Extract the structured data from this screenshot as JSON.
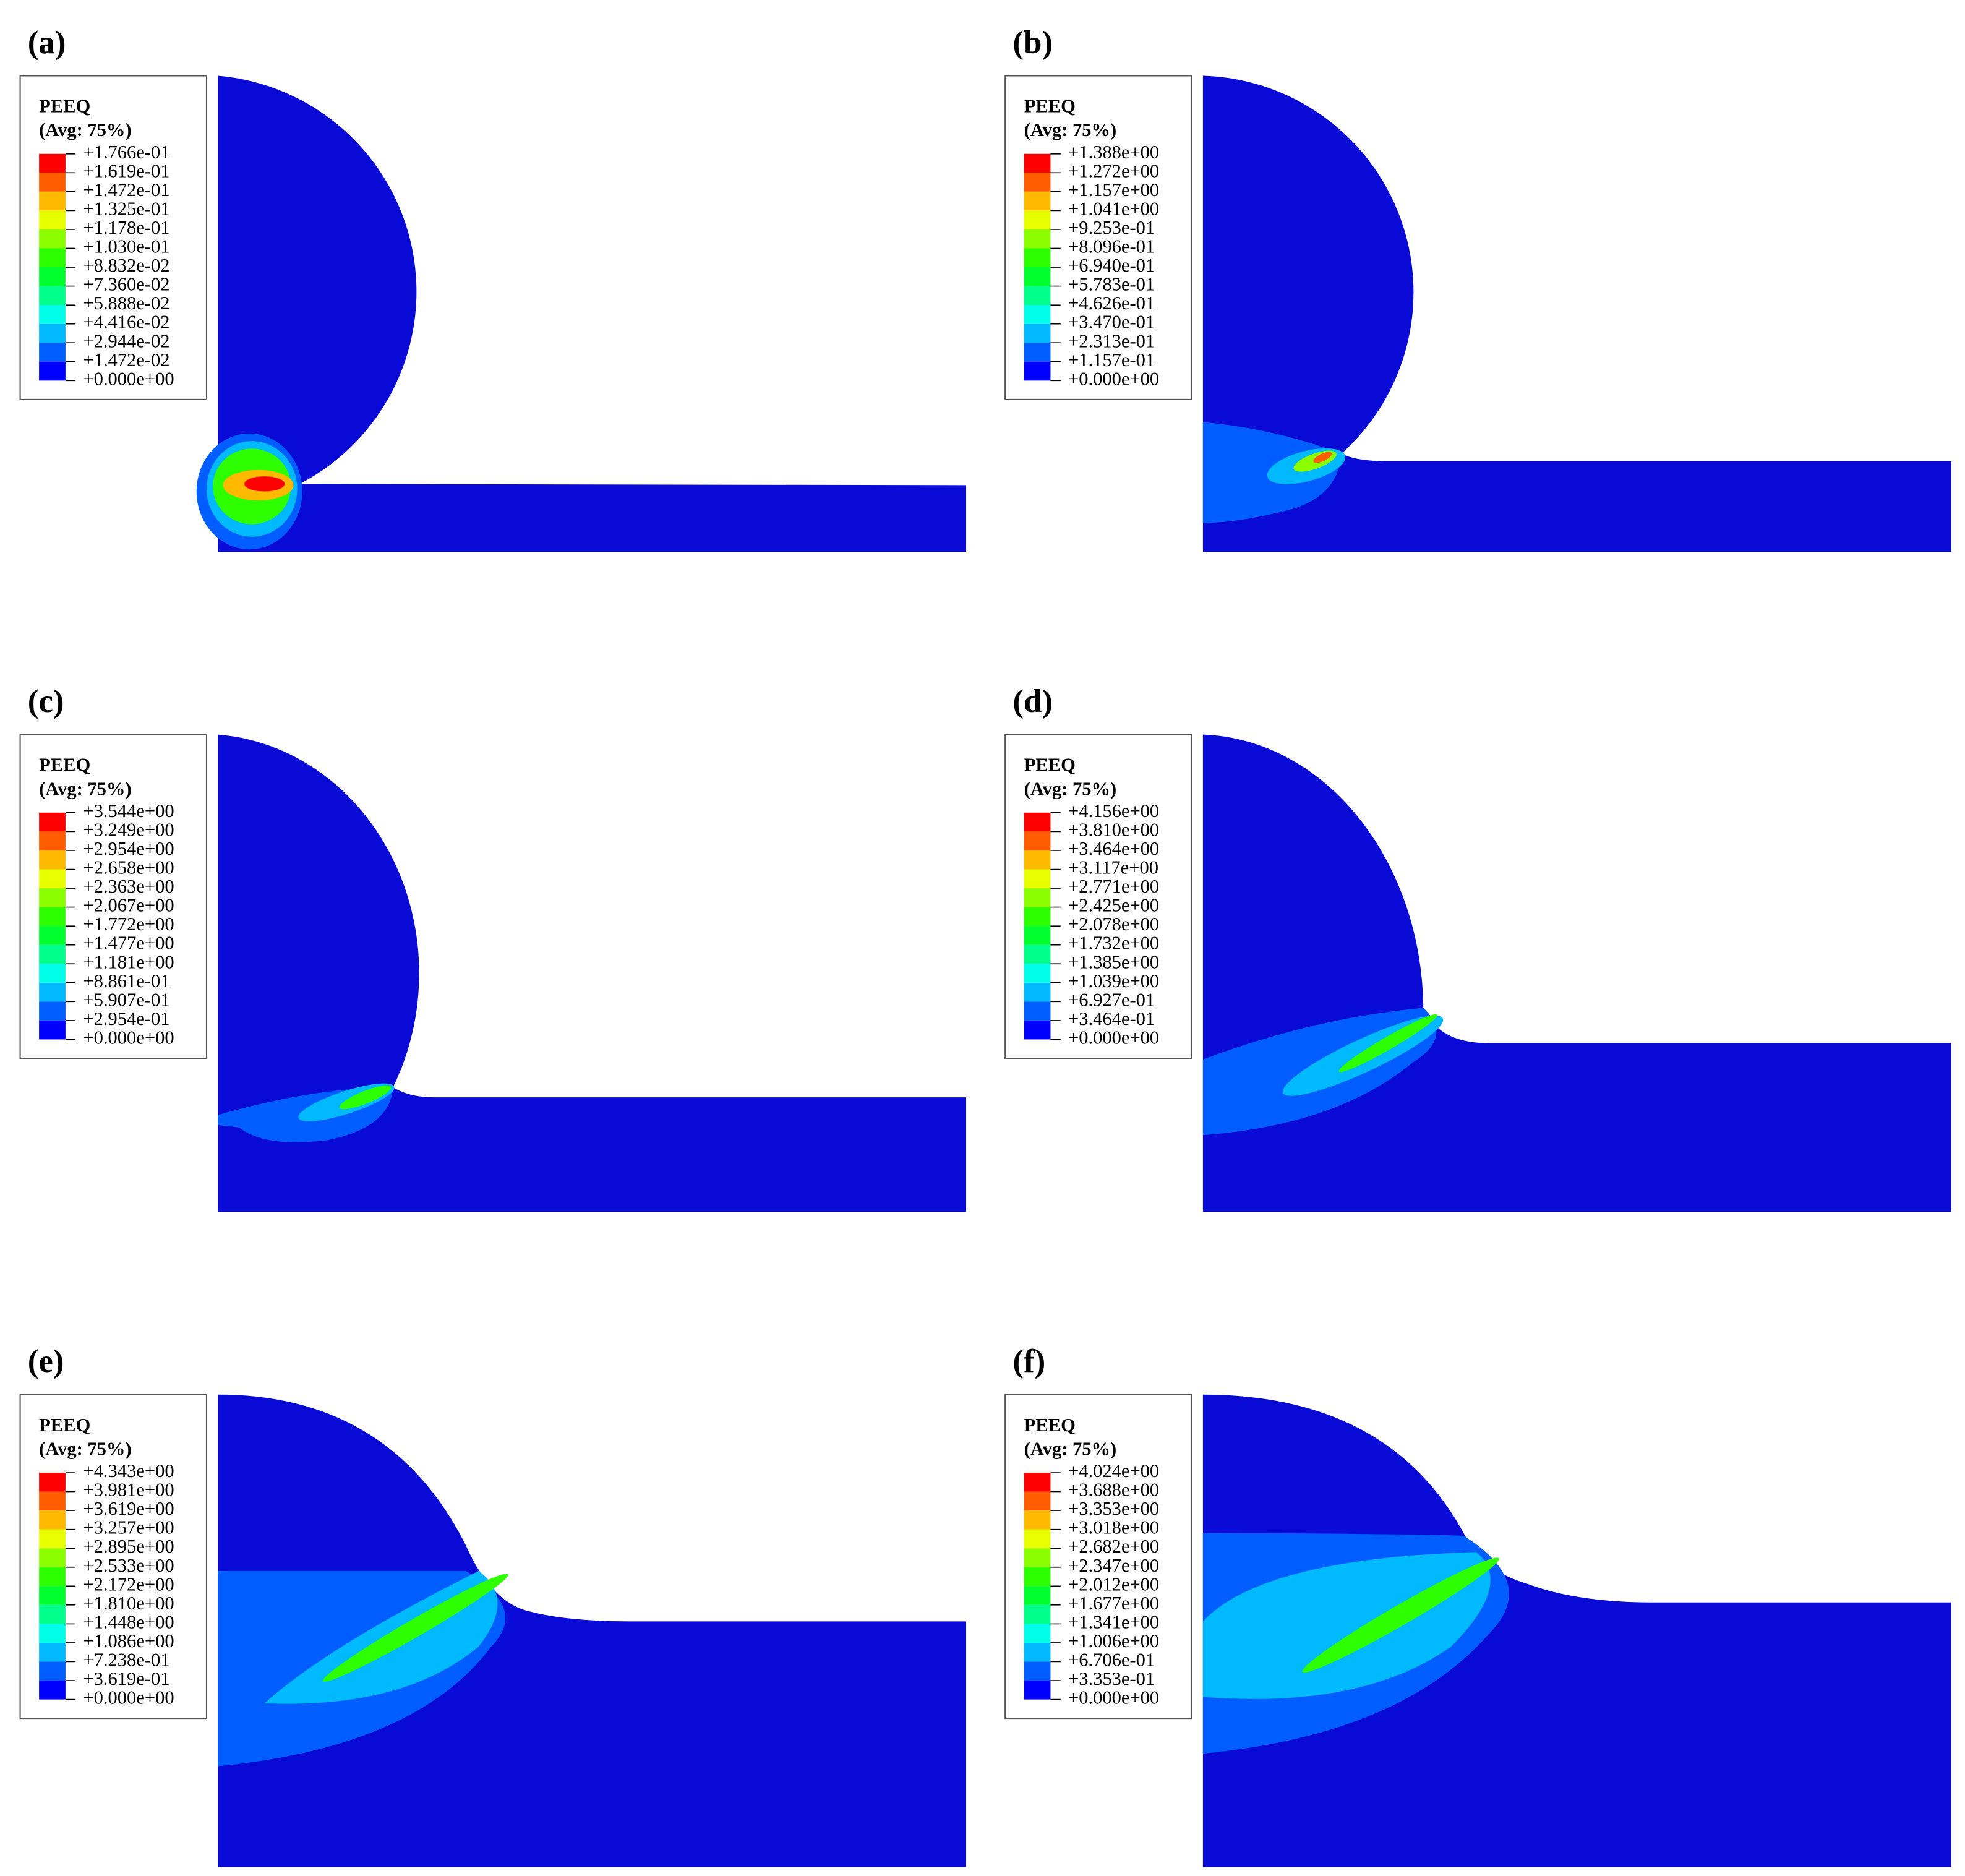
{
  "panels": [
    {
      "label": "(a)",
      "legend_title": "PEEQ",
      "legend_subtitle": "(Avg: 75%)",
      "legend_values": [
        "+1.766e-01",
        "+1.619e-01",
        "+1.472e-01",
        "+1.325e-01",
        "+1.178e-01",
        "+1.030e-01",
        "+8.832e-02",
        "+7.360e-02",
        "+5.888e-02",
        "+4.416e-02",
        "+2.944e-02",
        "+1.472e-02",
        "+0.000e+00"
      ]
    },
    {
      "label": "(b)",
      "legend_title": "PEEQ",
      "legend_subtitle": "(Avg: 75%)",
      "legend_values": [
        "+1.388e+00",
        "+1.272e+00",
        "+1.157e+00",
        "+1.041e+00",
        "+9.253e-01",
        "+8.096e-01",
        "+6.940e-01",
        "+5.783e-01",
        "+4.626e-01",
        "+3.470e-01",
        "+2.313e-01",
        "+1.157e-01",
        "+0.000e+00"
      ]
    },
    {
      "label": "(c)",
      "legend_title": "PEEQ",
      "legend_subtitle": "(Avg: 75%)",
      "legend_values": [
        "+3.544e+00",
        "+3.249e+00",
        "+2.954e+00",
        "+2.658e+00",
        "+2.363e+00",
        "+2.067e+00",
        "+1.772e+00",
        "+1.477e+00",
        "+1.181e+00",
        "+8.861e-01",
        "+5.907e-01",
        "+2.954e-01",
        "+0.000e+00"
      ]
    },
    {
      "label": "(d)",
      "legend_title": "PEEQ",
      "legend_subtitle": "(Avg: 75%)",
      "legend_values": [
        "+4.156e+00",
        "+3.810e+00",
        "+3.464e+00",
        "+3.117e+00",
        "+2.771e+00",
        "+2.425e+00",
        "+2.078e+00",
        "+1.732e+00",
        "+1.385e+00",
        "+1.039e+00",
        "+6.927e-01",
        "+3.464e-01",
        "+0.000e+00"
      ]
    },
    {
      "label": "(e)",
      "legend_title": "PEEQ",
      "legend_subtitle": "(Avg: 75%)",
      "legend_values": [
        "+4.343e+00",
        "+3.981e+00",
        "+3.619e+00",
        "+3.257e+00",
        "+2.895e+00",
        "+2.533e+00",
        "+2.172e+00",
        "+1.810e+00",
        "+1.448e+00",
        "+1.086e+00",
        "+7.238e-01",
        "+3.619e-01",
        "+0.000e+00"
      ]
    },
    {
      "label": "(f)",
      "legend_title": "PEEQ",
      "legend_subtitle": "(Avg: 75%)",
      "legend_values": [
        "+4.024e+00",
        "+3.688e+00",
        "+3.353e+00",
        "+3.018e+00",
        "+2.682e+00",
        "+2.347e+00",
        "+2.012e+00",
        "+1.677e+00",
        "+1.341e+00",
        "+1.006e+00",
        "+6.706e-01",
        "+3.353e-01",
        "+0.000e+00"
      ]
    }
  ]
}
